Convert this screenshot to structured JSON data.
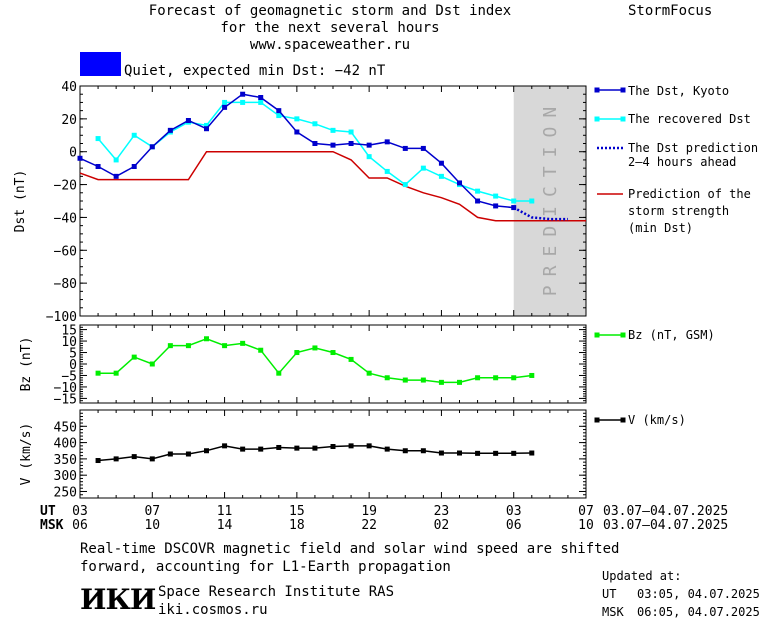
{
  "header": {
    "title_line1": "Forecast of geomagnetic storm and Dst index",
    "title_line2": "for the next several hours",
    "title_line3": "www.spaceweather.ru",
    "brand": "StormFocus",
    "status_text": "Quiet, expected min Dst: −42 nT",
    "status_color": "#0000ff"
  },
  "legend": {
    "dst_kyoto": "The Dst, Kyoto",
    "recovered": "The recovered Dst",
    "prediction_l1": "The Dst prediction",
    "prediction_l2": "2–4 hours ahead",
    "storm_l1": "Prediction of the",
    "storm_l2": "storm strength",
    "storm_l3": "(min Dst)",
    "bz": "Bz (nT, GSM)",
    "v": "V (km/s)"
  },
  "colors": {
    "dst_kyoto": "#0000cc",
    "recovered": "#00ffff",
    "prediction": "#0000cc",
    "storm": "#cc0000",
    "bz": "#00ee00",
    "v": "#000000",
    "prediction_band": "#d8d8d8"
  },
  "time_axis": {
    "ut_label": "UT",
    "msk_label": "MSK",
    "ut_ticks": [
      "03",
      "07",
      "11",
      "15",
      "19",
      "23",
      "03",
      "07"
    ],
    "msk_ticks": [
      "06",
      "10",
      "14",
      "18",
      "22",
      "02",
      "06",
      "10"
    ],
    "ut_range": "03.07–04.07.2025",
    "msk_range": "03.07–04.07.2025"
  },
  "chart_data": [
    {
      "type": "line",
      "ylabel": "Dst (nT)",
      "ylim": [
        -100,
        40
      ],
      "yticks": [
        40,
        20,
        0,
        -20,
        -40,
        -60,
        -80,
        -100
      ],
      "x_unit": "hours since 03 UT 03.07",
      "prediction_band_label": "PREDICTION",
      "prediction_band": [
        24,
        28
      ],
      "series": [
        {
          "name": "The Dst, Kyoto",
          "x": [
            0,
            1,
            2,
            3,
            4,
            5,
            6,
            7,
            8,
            9,
            10,
            11,
            12,
            13,
            14,
            15,
            16,
            17,
            18,
            19,
            20,
            21,
            22,
            23,
            24
          ],
          "values": [
            -4,
            -9,
            -15,
            -9,
            3,
            13,
            19,
            14,
            27,
            35,
            33,
            25,
            12,
            5,
            4,
            5,
            4,
            6,
            2,
            2,
            -7,
            -19,
            -30,
            -33,
            -34
          ]
        },
        {
          "name": "The recovered Dst",
          "x": [
            1,
            2,
            3,
            4,
            5,
            6,
            7,
            8,
            9,
            10,
            11,
            12,
            13,
            14,
            15,
            16,
            17,
            18,
            19,
            20,
            21,
            22,
            23,
            24,
            25
          ],
          "values": [
            8,
            -5,
            10,
            3,
            12,
            18,
            16,
            30,
            30,
            30,
            22,
            20,
            17,
            13,
            12,
            -3,
            -12,
            -20,
            -10,
            -15,
            -20,
            -24,
            -27,
            -30,
            -30
          ]
        },
        {
          "name": "The Dst prediction",
          "x": [
            24,
            25,
            26,
            27
          ],
          "values": [
            -34,
            -40,
            -41,
            -41
          ]
        },
        {
          "name": "Prediction of the storm strength",
          "x": [
            0,
            1,
            2,
            3,
            4,
            5,
            6,
            7,
            8,
            9,
            10,
            11,
            12,
            13,
            14,
            15,
            16,
            17,
            18,
            19,
            20,
            21,
            22,
            23,
            24,
            25,
            26,
            27,
            28
          ],
          "values": [
            -13,
            -17,
            -17,
            -17,
            -17,
            -17,
            -17,
            0,
            0,
            0,
            0,
            0,
            0,
            0,
            0,
            -5,
            -16,
            -16,
            -21,
            -25,
            -28,
            -32,
            -40,
            -42,
            -42,
            -42,
            -42,
            -42,
            -42
          ]
        }
      ]
    },
    {
      "type": "line",
      "ylabel": "Bz (nT)",
      "ylim": [
        -17,
        17
      ],
      "yticks": [
        15,
        10,
        5,
        0,
        -5,
        -10,
        -15
      ],
      "series": [
        {
          "name": "Bz (nT, GSM)",
          "x": [
            1,
            2,
            3,
            4,
            5,
            6,
            7,
            8,
            9,
            10,
            11,
            12,
            13,
            14,
            15,
            16,
            17,
            18,
            19,
            20,
            21,
            22,
            23,
            24,
            25
          ],
          "values": [
            -4,
            -4,
            3,
            0,
            8,
            8,
            11,
            8,
            9,
            6,
            -4,
            5,
            7,
            5,
            2,
            -4,
            -6,
            -7,
            -7,
            -8,
            -8,
            -6,
            -6,
            -6,
            -5
          ]
        }
      ]
    },
    {
      "type": "line",
      "ylabel": "V (km/s)",
      "ylim": [
        230,
        500
      ],
      "yticks": [
        450,
        400,
        350,
        300,
        250
      ],
      "series": [
        {
          "name": "V (km/s)",
          "x": [
            1,
            2,
            3,
            4,
            5,
            6,
            7,
            8,
            9,
            10,
            11,
            12,
            13,
            14,
            15,
            16,
            17,
            18,
            19,
            20,
            21,
            22,
            23,
            24,
            25
          ],
          "values": [
            345,
            350,
            357,
            350,
            365,
            365,
            375,
            390,
            380,
            380,
            385,
            383,
            383,
            388,
            390,
            390,
            380,
            375,
            375,
            368,
            368,
            367,
            367,
            367,
            368
          ]
        }
      ]
    }
  ],
  "footer": {
    "note_line1": "Real-time DSCOVR magnetic field and solar wind speed are shifted",
    "note_line2": "forward, accounting for L1-Earth propagation",
    "logo_text": "ИКИ",
    "institute": "Space Research Institute RAS",
    "site": "iki.cosmos.ru",
    "updated_label": "Updated at:",
    "ut_label": "UT",
    "ut_value": "03:05, 04.07.2025",
    "msk_label": "MSK",
    "msk_value": "06:05, 04.07.2025"
  }
}
